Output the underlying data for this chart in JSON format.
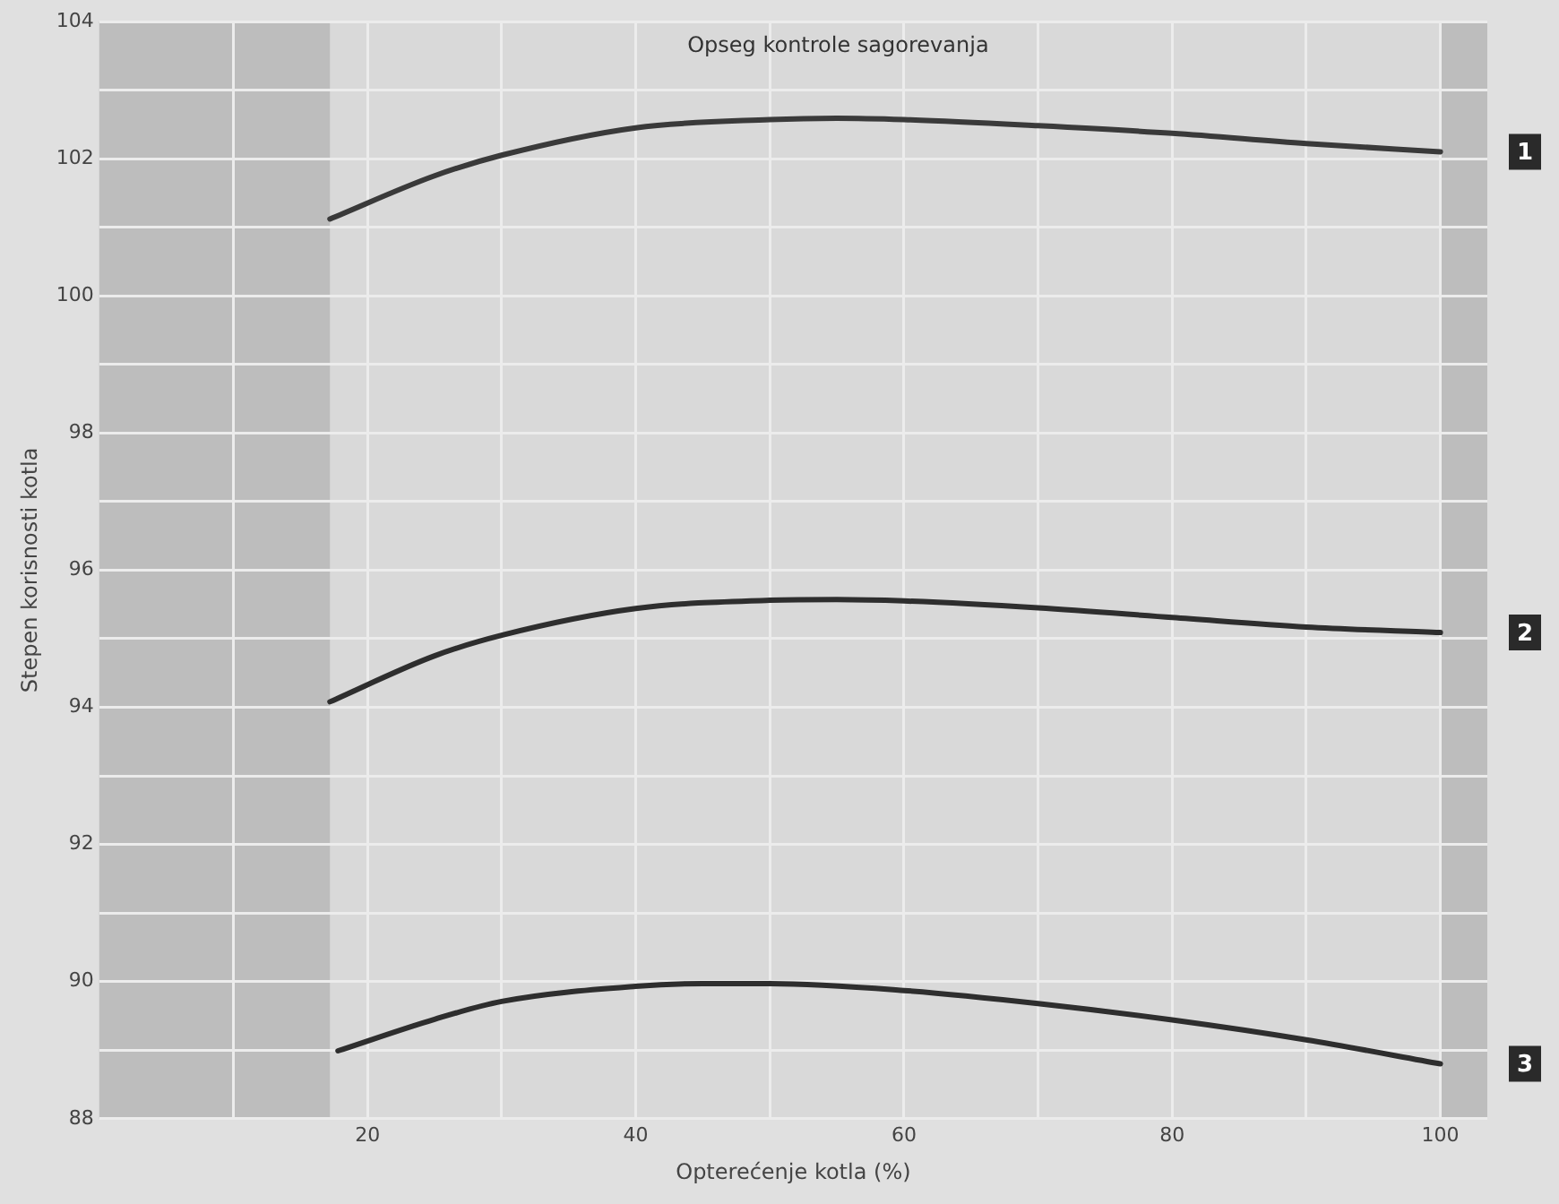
{
  "chart_data": {
    "type": "line",
    "xlabel": "Opterećenje kotla (%)",
    "ylabel": "Stepen korisnosti kotla",
    "annotations": [
      "Opseg kontrole sagorevanja"
    ],
    "xlim": [
      0,
      103.5
    ],
    "ylim": [
      88,
      104
    ],
    "xticks": [
      {
        "value": 10,
        "label": null
      },
      20,
      {
        "value": 30,
        "label": null
      },
      40,
      {
        "value": 50,
        "label": null
      },
      60,
      {
        "value": 70,
        "label": null
      },
      80,
      {
        "value": 90,
        "label": null
      },
      100
    ],
    "yticks": [
      88,
      {
        "value": 89,
        "label": null
      },
      90,
      {
        "value": 91,
        "label": null
      },
      92,
      {
        "value": 93,
        "label": null
      },
      94,
      {
        "value": 95,
        "label": null
      },
      96,
      {
        "value": 97,
        "label": null
      },
      98,
      {
        "value": 99,
        "label": null
      },
      100,
      {
        "value": 101,
        "label": null
      },
      102,
      {
        "value": 103,
        "label": null
      },
      104
    ],
    "grid": true,
    "legend": false,
    "marker": "none",
    "line_style": "solid",
    "bands": [
      {
        "axis": "x",
        "from": 0,
        "to": 17.2,
        "color": "#bdbdbd"
      },
      {
        "axis": "x",
        "from": 100,
        "to": 103.5,
        "color": "#bdbdbd"
      }
    ],
    "series": [
      {
        "name": "1",
        "color": "#3a3a3a",
        "x": [
          17.2,
          25,
          30,
          40,
          50,
          55,
          60,
          70,
          80,
          90,
          100
        ],
        "values": [
          101.12,
          101.75,
          102.05,
          102.45,
          102.57,
          102.59,
          102.57,
          102.48,
          102.37,
          102.22,
          102.1
        ]
      },
      {
        "name": "2",
        "color": "#2e2e2e",
        "x": [
          17.2,
          25,
          30,
          40,
          50,
          55,
          60,
          70,
          80,
          90,
          100
        ],
        "values": [
          94.08,
          94.75,
          95.05,
          95.44,
          95.56,
          95.57,
          95.55,
          95.45,
          95.31,
          95.17,
          95.09
        ]
      },
      {
        "name": "3",
        "color": "#2e2e2e",
        "x": [
          17.8,
          25,
          30,
          40,
          45,
          50,
          60,
          70,
          80,
          90,
          100
        ],
        "values": [
          88.99,
          89.45,
          89.71,
          89.93,
          89.97,
          89.97,
          89.87,
          89.68,
          89.44,
          89.15,
          88.8
        ]
      }
    ]
  }
}
